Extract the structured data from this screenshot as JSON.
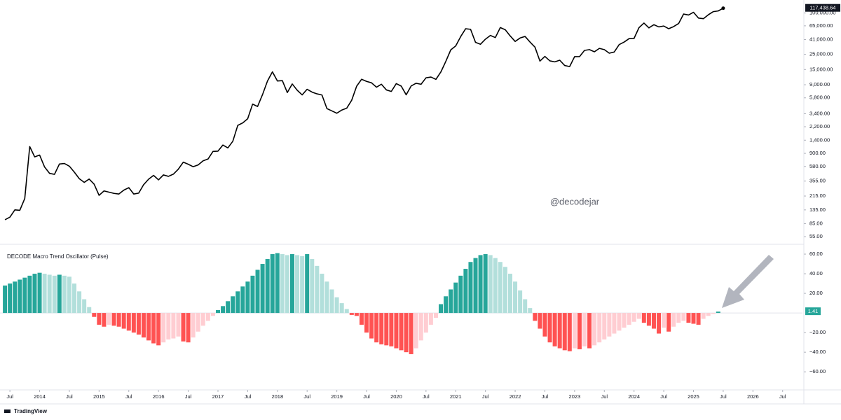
{
  "chart_data": [
    {
      "type": "line",
      "watermark": "@decodejar",
      "log_scale": true,
      "grid": false,
      "color": "#000000",
      "last_value_label": "117,438.64",
      "xlim": [
        "2013-05",
        "2026-11"
      ],
      "xticks": [
        {
          "value": "2013-07",
          "label": "Jul"
        },
        {
          "value": "2014-01",
          "label": "2014"
        },
        {
          "value": "2014-07",
          "label": "Jul"
        },
        {
          "value": "2015-01",
          "label": "2015"
        },
        {
          "value": "2015-07",
          "label": "Jul"
        },
        {
          "value": "2016-01",
          "label": "2016"
        },
        {
          "value": "2016-07",
          "label": "Jul"
        },
        {
          "value": "2017-01",
          "label": "2017"
        },
        {
          "value": "2017-07",
          "label": "Jul"
        },
        {
          "value": "2018-01",
          "label": "2018"
        },
        {
          "value": "2018-07",
          "label": "Jul"
        },
        {
          "value": "2019-01",
          "label": "2019"
        },
        {
          "value": "2019-07",
          "label": "Jul"
        },
        {
          "value": "2020-01",
          "label": "2020"
        },
        {
          "value": "2020-07",
          "label": "Jul"
        },
        {
          "value": "2021-01",
          "label": "2021"
        },
        {
          "value": "2021-07",
          "label": "Jul"
        },
        {
          "value": "2022-01",
          "label": "2022"
        },
        {
          "value": "2022-07",
          "label": "Jul"
        },
        {
          "value": "2023-01",
          "label": "2023"
        },
        {
          "value": "2023-07",
          "label": "Jul"
        },
        {
          "value": "2024-01",
          "label": "2024"
        },
        {
          "value": "2024-07",
          "label": "Jul"
        },
        {
          "value": "2025-01",
          "label": "2025"
        },
        {
          "value": "2025-07",
          "label": "Jul"
        },
        {
          "value": "2026-01",
          "label": "2026"
        },
        {
          "value": "2026-07",
          "label": "Jul"
        }
      ],
      "ylim": [
        44.6,
        154600
      ],
      "yticks": [
        {
          "value": 100000,
          "label": "100,000.00"
        },
        {
          "value": 65000,
          "label": "65,000.00"
        },
        {
          "value": 41000,
          "label": "41,000.00"
        },
        {
          "value": 25000,
          "label": "25,000.00"
        },
        {
          "value": 15000,
          "label": "15,000.00"
        },
        {
          "value": 9000,
          "label": "9,000.00"
        },
        {
          "value": 5800,
          "label": "5,800.00"
        },
        {
          "value": 3400,
          "label": "3,400.00"
        },
        {
          "value": 2200,
          "label": "2,200.00"
        },
        {
          "value": 1400,
          "label": "1,400.00"
        },
        {
          "value": 900,
          "label": "900.00"
        },
        {
          "value": 580,
          "label": "580.00"
        },
        {
          "value": 355,
          "label": "355.00"
        },
        {
          "value": 215,
          "label": "215.00"
        },
        {
          "value": 135,
          "label": "135.00"
        },
        {
          "value": 85,
          "label": "85.00"
        },
        {
          "value": 55,
          "label": "55.00"
        }
      ],
      "x": [
        "2013-06",
        "2013-07",
        "2013-08",
        "2013-09",
        "2013-10",
        "2013-11",
        "2013-12",
        "2014-01",
        "2014-02",
        "2014-03",
        "2014-04",
        "2014-05",
        "2014-06",
        "2014-07",
        "2014-08",
        "2014-09",
        "2014-10",
        "2014-11",
        "2014-12",
        "2015-01",
        "2015-02",
        "2015-03",
        "2015-04",
        "2015-05",
        "2015-06",
        "2015-07",
        "2015-08",
        "2015-09",
        "2015-10",
        "2015-11",
        "2015-12",
        "2016-01",
        "2016-02",
        "2016-03",
        "2016-04",
        "2016-05",
        "2016-06",
        "2016-07",
        "2016-08",
        "2016-09",
        "2016-10",
        "2016-11",
        "2016-12",
        "2017-01",
        "2017-02",
        "2017-03",
        "2017-04",
        "2017-05",
        "2017-06",
        "2017-07",
        "2017-08",
        "2017-09",
        "2017-10",
        "2017-11",
        "2017-12",
        "2018-01",
        "2018-02",
        "2018-03",
        "2018-04",
        "2018-05",
        "2018-06",
        "2018-07",
        "2018-08",
        "2018-09",
        "2018-10",
        "2018-11",
        "2018-12",
        "2019-01",
        "2019-02",
        "2019-03",
        "2019-04",
        "2019-05",
        "2019-06",
        "2019-07",
        "2019-08",
        "2019-09",
        "2019-10",
        "2019-11",
        "2019-12",
        "2020-01",
        "2020-02",
        "2020-03",
        "2020-04",
        "2020-05",
        "2020-06",
        "2020-07",
        "2020-08",
        "2020-09",
        "2020-10",
        "2020-11",
        "2020-12",
        "2021-01",
        "2021-02",
        "2021-03",
        "2021-04",
        "2021-05",
        "2021-06",
        "2021-07",
        "2021-08",
        "2021-09",
        "2021-10",
        "2021-11",
        "2021-12",
        "2022-01",
        "2022-02",
        "2022-03",
        "2022-04",
        "2022-05",
        "2022-06",
        "2022-07",
        "2022-08",
        "2022-09",
        "2022-10",
        "2022-11",
        "2022-12",
        "2023-01",
        "2023-02",
        "2023-03",
        "2023-04",
        "2023-05",
        "2023-06",
        "2023-07",
        "2023-08",
        "2023-09",
        "2023-10",
        "2023-11",
        "2023-12",
        "2024-01",
        "2024-02",
        "2024-03",
        "2024-04",
        "2024-05",
        "2024-06",
        "2024-07",
        "2024-08",
        "2024-09",
        "2024-10",
        "2024-11",
        "2024-12",
        "2025-01",
        "2025-02",
        "2025-03",
        "2025-04",
        "2025-05",
        "2025-06",
        "2025-07"
      ],
      "values": [
        97,
        106,
        135,
        133,
        198,
        1130,
        800,
        850,
        570,
        460,
        445,
        630,
        640,
        585,
        480,
        385,
        340,
        380,
        320,
        220,
        255,
        245,
        235,
        230,
        262,
        285,
        230,
        237,
        315,
        378,
        430,
        370,
        437,
        416,
        448,
        530,
        670,
        625,
        575,
        610,
        700,
        745,
        960,
        970,
        1190,
        1080,
        1350,
        2300,
        2500,
        2875,
        4700,
        4340,
        6470,
        10200,
        13860,
        10220,
        10330,
        6930,
        9240,
        7490,
        6400,
        7730,
        7030,
        6630,
        6370,
        4040,
        3740,
        3460,
        3850,
        4100,
        5350,
        8570,
        10820,
        10080,
        9600,
        8300,
        9150,
        7570,
        7190,
        9350,
        8600,
        6420,
        8630,
        9450,
        9140,
        11350,
        11650,
        10780,
        13800,
        19700,
        29000,
        33100,
        45200,
        58900,
        57800,
        37300,
        35000,
        41500,
        47100,
        43800,
        61300,
        57000,
        46300,
        38500,
        43200,
        45500,
        37700,
        31800,
        19900,
        23300,
        20050,
        19400,
        20500,
        17170,
        16550,
        23100,
        23150,
        28500,
        29250,
        27200,
        30470,
        29230,
        25940,
        26970,
        34650,
        37720,
        42280,
        42580,
        61130,
        71290,
        60640,
        67490,
        62680,
        64620,
        58970,
        63330,
        70220,
        96450,
        93430,
        102400,
        84350,
        82550,
        94200,
        104600,
        107100,
        117438.64
      ]
    },
    {
      "type": "bar",
      "title": "DECODE Macro Trend Oscillator (Pulse)",
      "grid": false,
      "colors": {
        "positive_rising": "#26a69a",
        "positive_falling": "#b2dfdb",
        "negative_falling": "#ff5252",
        "negative_rising": "#ffcdd2"
      },
      "xlim": [
        "2013-05",
        "2026-11"
      ],
      "ylim": [
        -77,
        69.3
      ],
      "yticks": [
        {
          "value": 60,
          "label": "60.00"
        },
        {
          "value": 40,
          "label": "40.00"
        },
        {
          "value": 20,
          "label": "20.00"
        },
        {
          "value": -20,
          "label": "−20.00"
        },
        {
          "value": -40,
          "label": "−40.00"
        },
        {
          "value": -60,
          "label": "−60.00"
        }
      ],
      "x": [
        "2013-06",
        "2013-07",
        "2013-08",
        "2013-09",
        "2013-10",
        "2013-11",
        "2013-12",
        "2014-01",
        "2014-02",
        "2014-03",
        "2014-04",
        "2014-05",
        "2014-06",
        "2014-07",
        "2014-08",
        "2014-09",
        "2014-10",
        "2014-11",
        "2014-12",
        "2015-01",
        "2015-02",
        "2015-03",
        "2015-04",
        "2015-05",
        "2015-06",
        "2015-07",
        "2015-08",
        "2015-09",
        "2015-10",
        "2015-11",
        "2015-12",
        "2016-01",
        "2016-02",
        "2016-03",
        "2016-04",
        "2016-05",
        "2016-06",
        "2016-07",
        "2016-08",
        "2016-09",
        "2016-10",
        "2016-11",
        "2016-12",
        "2017-01",
        "2017-02",
        "2017-03",
        "2017-04",
        "2017-05",
        "2017-06",
        "2017-07",
        "2017-08",
        "2017-09",
        "2017-10",
        "2017-11",
        "2017-12",
        "2018-01",
        "2018-02",
        "2018-03",
        "2018-04",
        "2018-05",
        "2018-06",
        "2018-07",
        "2018-08",
        "2018-09",
        "2018-10",
        "2018-11",
        "2018-12",
        "2019-01",
        "2019-02",
        "2019-03",
        "2019-04",
        "2019-05",
        "2019-06",
        "2019-07",
        "2019-08",
        "2019-09",
        "2019-10",
        "2019-11",
        "2019-12",
        "2020-01",
        "2020-02",
        "2020-03",
        "2020-04",
        "2020-05",
        "2020-06",
        "2020-07",
        "2020-08",
        "2020-09",
        "2020-10",
        "2020-11",
        "2020-12",
        "2021-01",
        "2021-02",
        "2021-03",
        "2021-04",
        "2021-05",
        "2021-06",
        "2021-07",
        "2021-08",
        "2021-09",
        "2021-10",
        "2021-11",
        "2021-12",
        "2022-01",
        "2022-02",
        "2022-03",
        "2022-04",
        "2022-05",
        "2022-06",
        "2022-07",
        "2022-08",
        "2022-09",
        "2022-10",
        "2022-11",
        "2022-12",
        "2023-01",
        "2023-02",
        "2023-03",
        "2023-04",
        "2023-05",
        "2023-06",
        "2023-07",
        "2023-08",
        "2023-09",
        "2023-10",
        "2023-11",
        "2023-12",
        "2024-01",
        "2024-02",
        "2024-03",
        "2024-04",
        "2024-05",
        "2024-06",
        "2024-07",
        "2024-08",
        "2024-09",
        "2024-10",
        "2024-11",
        "2024-12",
        "2025-01",
        "2025-02",
        "2025-03",
        "2025-04",
        "2025-05",
        "2025-06"
      ],
      "values": [
        28,
        30,
        32,
        34,
        36,
        38,
        40,
        41,
        40,
        39,
        38,
        39,
        38,
        37,
        30,
        22,
        14,
        6,
        -4,
        -12,
        -14,
        -12,
        -13,
        -14,
        -16,
        -18,
        -20,
        -22,
        -25,
        -28,
        -31,
        -33,
        -30,
        -27,
        -26,
        -24,
        -29,
        -30,
        -25,
        -19,
        -13,
        -8,
        -3,
        3,
        7,
        12,
        17,
        22,
        27,
        32,
        38,
        44,
        50,
        55,
        60,
        61,
        60,
        59,
        60,
        59,
        58,
        60,
        55,
        48,
        40,
        32,
        24,
        16,
        10,
        4,
        -2,
        -3,
        -12,
        -20,
        -26,
        -30,
        -32,
        -33,
        -34,
        -36,
        -38,
        -40,
        -42,
        -36,
        -28,
        -20,
        -12,
        -5,
        9,
        17,
        24,
        31,
        38,
        45,
        52,
        56,
        59,
        60,
        59,
        56,
        52,
        47,
        40,
        32,
        23,
        14,
        5,
        -8,
        -16,
        -24,
        -30,
        -34,
        -36,
        -38,
        -39,
        -36,
        -37,
        -34,
        -36,
        -33,
        -30,
        -27,
        -24,
        -21,
        -18,
        -15,
        -12,
        -9,
        -6,
        -10,
        -13,
        -16,
        -21,
        -15,
        -19,
        -14,
        -10,
        -8,
        -10,
        -11,
        -12,
        -6,
        -3,
        -1,
        1.41
      ]
    }
  ]
}
